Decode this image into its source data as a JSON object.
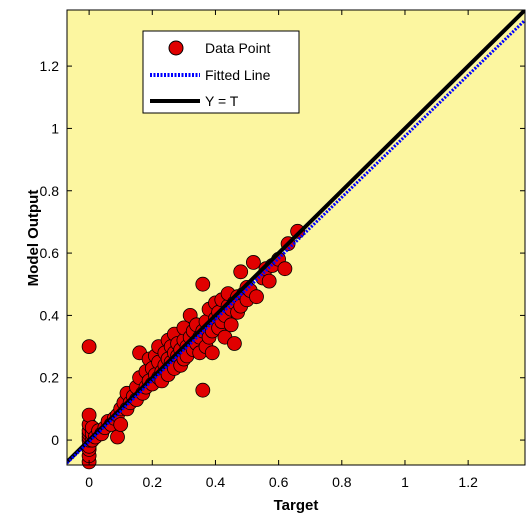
{
  "chart_data": {
    "type": "scatter",
    "xlabel": "Target",
    "ylabel": "Model Output",
    "xlim": [
      -0.07,
      1.38
    ],
    "ylim": [
      -0.08,
      1.38
    ],
    "xticks": [
      0,
      0.2,
      0.4,
      0.6,
      0.8,
      1,
      1.2
    ],
    "xtick_labels": [
      "0",
      "0.2",
      "0.4",
      "0.6",
      "0.8",
      "1",
      "1.2"
    ],
    "yticks": [
      0,
      0.2,
      0.4,
      0.6,
      0.8,
      1,
      1.2
    ],
    "ytick_labels": [
      "0",
      "0.2",
      "0.4",
      "0.6",
      "0.8",
      "1",
      "1.2"
    ],
    "grid": false,
    "background_color": "#FCF6A0",
    "legend_position": "top-left",
    "legend": [
      {
        "label": "Data Point",
        "kind": "marker"
      },
      {
        "label": "Fitted Line",
        "kind": "dotted-line"
      },
      {
        "label": "Y = T",
        "kind": "solid-line"
      }
    ],
    "series": [
      {
        "name": "Data Point",
        "color": "#E00000",
        "points": [
          [
            0.0,
            -0.07
          ],
          [
            0.0,
            -0.05
          ],
          [
            0.0,
            -0.03
          ],
          [
            0.0,
            -0.02
          ],
          [
            0.0,
            0.0
          ],
          [
            0.0,
            0.01
          ],
          [
            0.0,
            0.02
          ],
          [
            0.0,
            0.03
          ],
          [
            0.0,
            0.05
          ],
          [
            0.0,
            0.08
          ],
          [
            0.0,
            0.3
          ],
          [
            0.01,
            0.0
          ],
          [
            0.01,
            0.02
          ],
          [
            0.01,
            0.04
          ],
          [
            0.02,
            0.01
          ],
          [
            0.03,
            0.03
          ],
          [
            0.04,
            0.02
          ],
          [
            0.05,
            0.04
          ],
          [
            0.06,
            0.06
          ],
          [
            0.07,
            0.05
          ],
          [
            0.08,
            0.07
          ],
          [
            0.09,
            0.08
          ],
          [
            0.09,
            0.01
          ],
          [
            0.1,
            0.1
          ],
          [
            0.1,
            0.05
          ],
          [
            0.11,
            0.12
          ],
          [
            0.12,
            0.1
          ],
          [
            0.12,
            0.15
          ],
          [
            0.13,
            0.12
          ],
          [
            0.14,
            0.14
          ],
          [
            0.15,
            0.13
          ],
          [
            0.15,
            0.17
          ],
          [
            0.16,
            0.2
          ],
          [
            0.16,
            0.28
          ],
          [
            0.17,
            0.15
          ],
          [
            0.18,
            0.17
          ],
          [
            0.18,
            0.22
          ],
          [
            0.19,
            0.19
          ],
          [
            0.19,
            0.26
          ],
          [
            0.2,
            0.18
          ],
          [
            0.2,
            0.23
          ],
          [
            0.21,
            0.21
          ],
          [
            0.21,
            0.27
          ],
          [
            0.22,
            0.2
          ],
          [
            0.22,
            0.25
          ],
          [
            0.22,
            0.3
          ],
          [
            0.23,
            0.22
          ],
          [
            0.23,
            0.19
          ],
          [
            0.24,
            0.24
          ],
          [
            0.24,
            0.28
          ],
          [
            0.25,
            0.21
          ],
          [
            0.25,
            0.26
          ],
          [
            0.25,
            0.32
          ],
          [
            0.26,
            0.25
          ],
          [
            0.26,
            0.3
          ],
          [
            0.27,
            0.23
          ],
          [
            0.27,
            0.28
          ],
          [
            0.27,
            0.34
          ],
          [
            0.28,
            0.27
          ],
          [
            0.28,
            0.31
          ],
          [
            0.29,
            0.24
          ],
          [
            0.29,
            0.29
          ],
          [
            0.3,
            0.26
          ],
          [
            0.3,
            0.32
          ],
          [
            0.3,
            0.36
          ],
          [
            0.31,
            0.3
          ],
          [
            0.31,
            0.27
          ],
          [
            0.32,
            0.33
          ],
          [
            0.32,
            0.4
          ],
          [
            0.33,
            0.29
          ],
          [
            0.33,
            0.35
          ],
          [
            0.34,
            0.31
          ],
          [
            0.34,
            0.37
          ],
          [
            0.35,
            0.28
          ],
          [
            0.35,
            0.33
          ],
          [
            0.36,
            0.35
          ],
          [
            0.36,
            0.16
          ],
          [
            0.36,
            0.5
          ],
          [
            0.37,
            0.3
          ],
          [
            0.37,
            0.38
          ],
          [
            0.38,
            0.33
          ],
          [
            0.38,
            0.42
          ],
          [
            0.39,
            0.35
          ],
          [
            0.39,
            0.28
          ],
          [
            0.4,
            0.39
          ],
          [
            0.4,
            0.44
          ],
          [
            0.41,
            0.36
          ],
          [
            0.41,
            0.41
          ],
          [
            0.42,
            0.38
          ],
          [
            0.42,
            0.45
          ],
          [
            0.43,
            0.4
          ],
          [
            0.43,
            0.33
          ],
          [
            0.44,
            0.43
          ],
          [
            0.44,
            0.47
          ],
          [
            0.45,
            0.37
          ],
          [
            0.45,
            0.42
          ],
          [
            0.46,
            0.44
          ],
          [
            0.46,
            0.31
          ],
          [
            0.47,
            0.41
          ],
          [
            0.47,
            0.46
          ],
          [
            0.48,
            0.43
          ],
          [
            0.48,
            0.54
          ],
          [
            0.49,
            0.47
          ],
          [
            0.5,
            0.45
          ],
          [
            0.5,
            0.49
          ],
          [
            0.51,
            0.48
          ],
          [
            0.52,
            0.57
          ],
          [
            0.53,
            0.46
          ],
          [
            0.55,
            0.52
          ],
          [
            0.56,
            0.55
          ],
          [
            0.57,
            0.51
          ],
          [
            0.58,
            0.56
          ],
          [
            0.6,
            0.58
          ],
          [
            0.62,
            0.55
          ],
          [
            0.63,
            0.63
          ],
          [
            0.66,
            0.67
          ]
        ]
      },
      {
        "name": "Fitted Line",
        "color": "#0000FF",
        "style": "dotted",
        "slope": 0.98,
        "intercept": -0.005
      },
      {
        "name": "Y = T",
        "color": "#000000",
        "style": "solid",
        "slope": 1,
        "intercept": 0
      }
    ]
  }
}
